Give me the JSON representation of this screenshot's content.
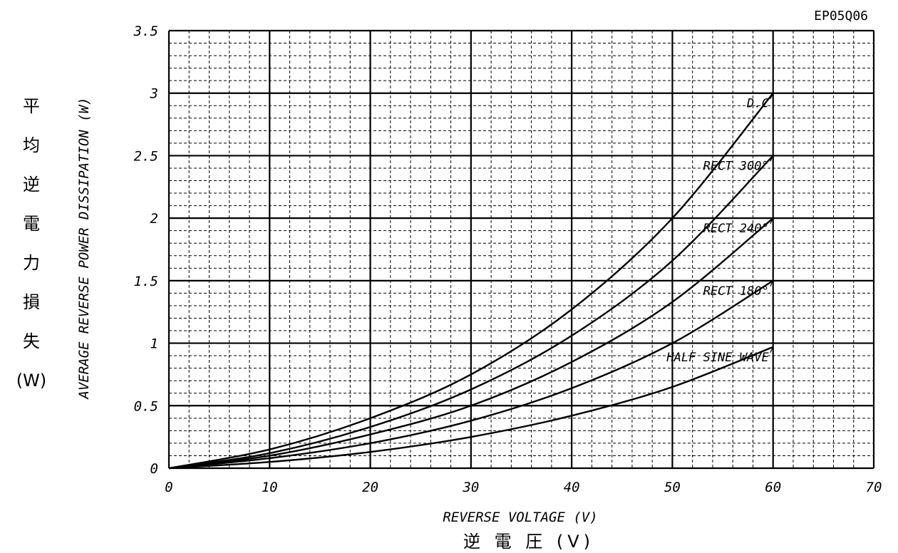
{
  "figure_code": "EP05Q06",
  "chart_data": {
    "type": "line",
    "xlabel": "REVERSE VOLTAGE (V)",
    "xlabel_jp": "逆 電 圧 (V)",
    "ylabel": "AVERAGE REVERSE POWER DISSIPATION (W)",
    "ylabel_jp": [
      "平",
      "均",
      "逆",
      "電",
      "力",
      "損",
      "失",
      "(W)"
    ],
    "xlim": [
      0,
      70
    ],
    "ylim": [
      0,
      3.5
    ],
    "x_ticks": [
      "0",
      "10",
      "20",
      "30",
      "40",
      "50",
      "60",
      "70"
    ],
    "y_ticks": [
      "0",
      "0.5",
      "1",
      "1.5",
      "2",
      "2.5",
      "3",
      "3.5"
    ],
    "grid": true,
    "series": [
      {
        "name": "D.C",
        "x": [
          0,
          10,
          20,
          30,
          40,
          50,
          60
        ],
        "y": [
          0,
          0.15,
          0.4,
          0.75,
          1.27,
          2.0,
          3.0
        ]
      },
      {
        "name": "RECT 300°",
        "x": [
          0,
          10,
          20,
          30,
          40,
          50,
          60
        ],
        "y": [
          0,
          0.12,
          0.33,
          0.63,
          1.06,
          1.66,
          2.5
        ]
      },
      {
        "name": "RECT 240°",
        "x": [
          0,
          10,
          20,
          30,
          40,
          50,
          60
        ],
        "y": [
          0,
          0.1,
          0.27,
          0.5,
          0.85,
          1.33,
          2.0
        ]
      },
      {
        "name": "RECT 180°",
        "x": [
          0,
          10,
          20,
          30,
          40,
          50,
          60
        ],
        "y": [
          0,
          0.08,
          0.2,
          0.38,
          0.64,
          1.0,
          1.5
        ]
      },
      {
        "name": "HALF SINE WAVE",
        "x": [
          0,
          10,
          20,
          30,
          40,
          50,
          60
        ],
        "y": [
          0,
          0.05,
          0.13,
          0.25,
          0.42,
          0.65,
          0.97
        ]
      }
    ]
  }
}
